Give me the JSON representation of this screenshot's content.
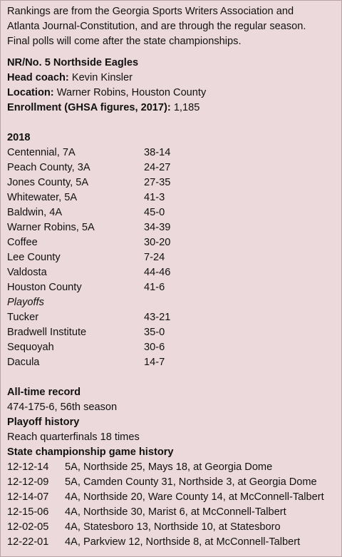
{
  "intro": [
    "Rankings are from the Georgia Sports Writers Association and",
    "Atlanta Journal-Constitution, and are through the regular season.",
    "Final polls will come after the state championships."
  ],
  "team": {
    "title": "NR/No. 5 Northside Eagles",
    "coach_label": "Head coach:",
    "coach_value": " Kevin Kinsler",
    "location_label": "Location:",
    "location_value": " Warner Robins, Houston County",
    "enrollment_label": "Enrollment (GHSA figures, 2017):",
    "enrollment_value": " 1,185"
  },
  "season": {
    "year": "2018",
    "games": [
      {
        "opponent": "Centennial, 7A",
        "score": "38-14"
      },
      {
        "opponent": "Peach County, 3A",
        "score": "24-27"
      },
      {
        "opponent": "Jones County, 5A",
        "score": "27-35"
      },
      {
        "opponent": "Whitewater, 5A",
        "score": "41-3"
      },
      {
        "opponent": "Baldwin, 4A",
        "score": "45-0"
      },
      {
        "opponent": "Warner Robins, 5A",
        "score": "34-39"
      },
      {
        "opponent": "Coffee",
        "score": "30-20"
      },
      {
        "opponent": "Lee County",
        "score": "7-24"
      },
      {
        "opponent": "Valdosta",
        "score": "44-46"
      },
      {
        "opponent": "Houston County",
        "score": "41-6"
      }
    ],
    "playoffs_label": "Playoffs",
    "playoffs": [
      {
        "opponent": "Tucker",
        "score": "43-21"
      },
      {
        "opponent": "Bradwell Institute",
        "score": "35-0"
      },
      {
        "opponent": "Sequoyah",
        "score": "30-6"
      },
      {
        "opponent": "Dacula",
        "score": "14-7"
      }
    ]
  },
  "all_time": {
    "label": "All-time record",
    "value": "474-175-6, 56th season"
  },
  "playoff_history": {
    "label": "Playoff history",
    "value": "Reach quarterfinals 18 times"
  },
  "state_championships": {
    "label": "State championship game history",
    "games": [
      {
        "date": "12-12-14",
        "detail": "5A, Northside 25, Mays 18, at Georgia Dome"
      },
      {
        "date": "12-12-09",
        "detail": "5A, Camden County 31, Northside 3, at Georgia Dome"
      },
      {
        "date": "12-14-07",
        "detail": "4A, Northside 20, Ware County 14, at McConnell-Talbert"
      },
      {
        "date": "12-15-06",
        "detail": "4A, Northside 30, Marist 6, at McConnell-Talbert"
      },
      {
        "date": "12-02-05",
        "detail": "4A, Statesboro 13, Northside 10, at Statesboro"
      },
      {
        "date": "12-22-01",
        "detail": "4A, Parkview 12, Northside 8, at McConnell-Talbert"
      }
    ]
  }
}
